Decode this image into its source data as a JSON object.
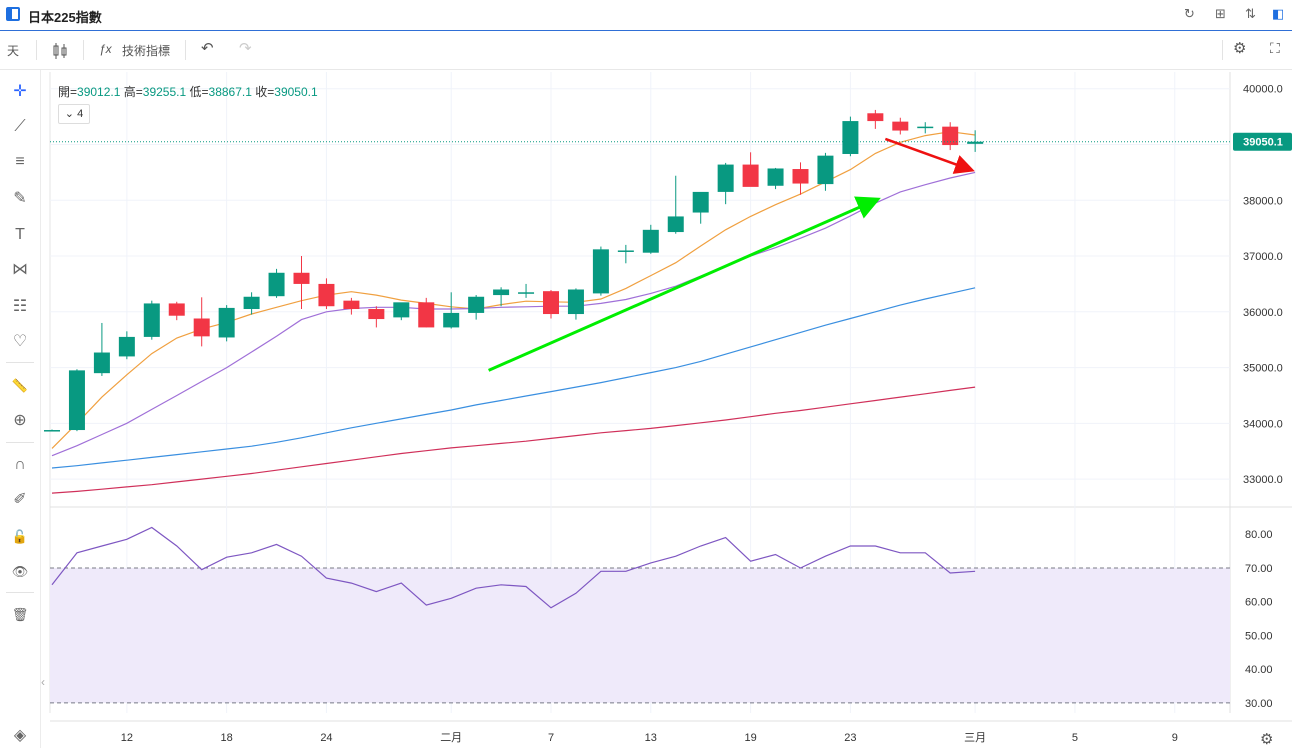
{
  "window": {
    "title": "日本225指數",
    "buttons": [
      {
        "name": "refresh-icon",
        "glyph": "↻"
      },
      {
        "name": "layout-icon",
        "glyph": "⊞"
      },
      {
        "name": "compare-icon",
        "glyph": "⇅"
      },
      {
        "name": "fullscreen-panel-icon",
        "glyph": "◧"
      }
    ]
  },
  "toolbar": {
    "interval": "天",
    "indicators_label": "技術指標",
    "fx_glyph": "ƒx",
    "undo_glyph": "↶",
    "redo_glyph": "↷",
    "settings_glyph": "⚙",
    "fullscreen_glyph": "⛶"
  },
  "leftbar": {
    "tools": [
      {
        "name": "crosshair-icon",
        "glyph": "✛"
      },
      {
        "name": "trendline-icon",
        "glyph": "⟋"
      },
      {
        "name": "horizontal-lines-icon",
        "glyph": "≡"
      },
      {
        "name": "brush-icon",
        "glyph": "✎"
      },
      {
        "name": "text-icon",
        "glyph": "T"
      },
      {
        "name": "pattern-icon",
        "glyph": "⋈"
      },
      {
        "name": "fib-icon",
        "glyph": "☷"
      },
      {
        "name": "heart-icon",
        "glyph": "♡"
      },
      {
        "name": "ruler-icon",
        "glyph": "📏"
      },
      {
        "name": "zoom-icon",
        "glyph": "⊕"
      },
      {
        "name": "magnet-icon",
        "glyph": "∩"
      },
      {
        "name": "lock-pen-icon",
        "glyph": "✐"
      },
      {
        "name": "lock-icon",
        "glyph": "🔓"
      },
      {
        "name": "eye-icon",
        "glyph": "👁"
      },
      {
        "name": "trash-icon",
        "glyph": "🗑"
      }
    ],
    "layers_glyph": "◈",
    "collapse_glyph": "‹"
  },
  "legend": {
    "open_label": "開=",
    "open": "39012.1",
    "high_label": "高=",
    "high": "39255.1",
    "low_label": "低=",
    "low": "38867.1",
    "close_label": "收=",
    "close": "39050.1",
    "indicator_badge": "4"
  },
  "colors": {
    "up": "#089981",
    "down": "#f23645",
    "ma_orange": "#f0a040",
    "ma_purple": "#a070d8",
    "ma_blue": "#3a8fe0",
    "ma_red": "#d0305a",
    "rsi": "#7e57c2",
    "rsi_band": "#efeafa",
    "arrow_up": "#00ee00",
    "arrow_down": "#ee1111",
    "last_price_bg": "#089981"
  },
  "chart_data": {
    "type": "candlestick",
    "price_axis": {
      "ylim": [
        32500,
        40300
      ],
      "ticks": [
        "40000.0",
        "39000.0",
        "38000.0",
        "37000.0",
        "36000.0",
        "35000.0",
        "34000.0",
        "33000.0"
      ],
      "tick_values": [
        40000,
        39000,
        38000,
        37000,
        36000,
        35000,
        34000,
        33000
      ]
    },
    "last_price": 39050.1,
    "last_price_label": "39050.1",
    "x_axis": {
      "ticks": [
        "12",
        "18",
        "24",
        "二月",
        "7",
        "13",
        "19",
        "23",
        "三月",
        "5",
        "9"
      ],
      "tick_index": [
        3,
        7,
        11,
        16,
        20,
        24,
        28,
        32,
        37,
        41,
        45
      ]
    },
    "candles": [
      {
        "o": 33880,
        "h": 33890,
        "l": 33870,
        "c": 33880
      },
      {
        "o": 33880,
        "h": 34970,
        "l": 33860,
        "c": 34950
      },
      {
        "o": 34900,
        "h": 35800,
        "l": 34850,
        "c": 35270
      },
      {
        "o": 35200,
        "h": 35650,
        "l": 35150,
        "c": 35550
      },
      {
        "o": 35550,
        "h": 36200,
        "l": 35500,
        "c": 36150
      },
      {
        "o": 36150,
        "h": 36180,
        "l": 35850,
        "c": 35930
      },
      {
        "o": 35880,
        "h": 36260,
        "l": 35380,
        "c": 35560
      },
      {
        "o": 35540,
        "h": 36120,
        "l": 35470,
        "c": 36070
      },
      {
        "o": 36050,
        "h": 36350,
        "l": 35950,
        "c": 36270
      },
      {
        "o": 36280,
        "h": 36770,
        "l": 36250,
        "c": 36700
      },
      {
        "o": 36700,
        "h": 37000,
        "l": 36050,
        "c": 36500
      },
      {
        "o": 36500,
        "h": 36600,
        "l": 36050,
        "c": 36100
      },
      {
        "o": 36200,
        "h": 36250,
        "l": 35950,
        "c": 36050
      },
      {
        "o": 36050,
        "h": 36100,
        "l": 35720,
        "c": 35870
      },
      {
        "o": 35900,
        "h": 36160,
        "l": 35850,
        "c": 36170
      },
      {
        "o": 36170,
        "h": 36250,
        "l": 35720,
        "c": 35720
      },
      {
        "o": 35720,
        "h": 36350,
        "l": 35700,
        "c": 35980
      },
      {
        "o": 35980,
        "h": 36300,
        "l": 35860,
        "c": 36270
      },
      {
        "o": 36300,
        "h": 36440,
        "l": 36100,
        "c": 36400
      },
      {
        "o": 36350,
        "h": 36500,
        "l": 36250,
        "c": 36350
      },
      {
        "o": 36370,
        "h": 36390,
        "l": 35880,
        "c": 35960
      },
      {
        "o": 35960,
        "h": 36420,
        "l": 35860,
        "c": 36400
      },
      {
        "o": 36330,
        "h": 37170,
        "l": 36290,
        "c": 37120
      },
      {
        "o": 37100,
        "h": 37200,
        "l": 36870,
        "c": 37100
      },
      {
        "o": 37060,
        "h": 37560,
        "l": 37040,
        "c": 37470
      },
      {
        "o": 37430,
        "h": 38440,
        "l": 37400,
        "c": 37710
      },
      {
        "o": 37780,
        "h": 38130,
        "l": 37580,
        "c": 38150
      },
      {
        "o": 38150,
        "h": 38670,
        "l": 37930,
        "c": 38640
      },
      {
        "o": 38640,
        "h": 38860,
        "l": 38250,
        "c": 38240
      },
      {
        "o": 38260,
        "h": 38580,
        "l": 38200,
        "c": 38570
      },
      {
        "o": 38560,
        "h": 38680,
        "l": 38100,
        "c": 38300
      },
      {
        "o": 38290,
        "h": 38850,
        "l": 38170,
        "c": 38800
      },
      {
        "o": 38830,
        "h": 39500,
        "l": 38790,
        "c": 39420
      },
      {
        "o": 39560,
        "h": 39620,
        "l": 39280,
        "c": 39420
      },
      {
        "o": 39410,
        "h": 39480,
        "l": 39180,
        "c": 39250
      },
      {
        "o": 39300,
        "h": 39400,
        "l": 39200,
        "c": 39320
      },
      {
        "o": 39320,
        "h": 39400,
        "l": 38900,
        "c": 38990
      },
      {
        "o": 39012.1,
        "h": 39255.1,
        "l": 38867.1,
        "c": 39050.1
      }
    ],
    "moving_averages": [
      {
        "color": "ma_orange",
        "values": [
          33550,
          34000,
          34470,
          34870,
          35250,
          35530,
          35690,
          35810,
          35960,
          36080,
          36200,
          36300,
          36360,
          36300,
          36210,
          36150,
          36090,
          36050,
          36130,
          36190,
          36180,
          36170,
          36230,
          36420,
          36650,
          36880,
          37180,
          37470,
          37710,
          37920,
          38110,
          38330,
          38550,
          38840,
          39040,
          39160,
          39230,
          39170
        ]
      },
      {
        "color": "ma_purple",
        "values": [
          33420,
          33600,
          33800,
          34000,
          34250,
          34500,
          34750,
          35000,
          35280,
          35560,
          35860,
          36000,
          36060,
          36080,
          36080,
          36050,
          36050,
          36060,
          36080,
          36090,
          36100,
          36100,
          36150,
          36220,
          36330,
          36460,
          36640,
          36820,
          37000,
          37150,
          37320,
          37500,
          37720,
          37950,
          38150,
          38280,
          38400,
          38500
        ]
      },
      {
        "color": "ma_blue",
        "values": [
          33200,
          33240,
          33290,
          33340,
          33390,
          33440,
          33490,
          33540,
          33590,
          33660,
          33740,
          33830,
          33920,
          34000,
          34080,
          34160,
          34240,
          34330,
          34410,
          34490,
          34570,
          34650,
          34730,
          34820,
          34910,
          35000,
          35110,
          35240,
          35370,
          35500,
          35630,
          35760,
          35880,
          36000,
          36120,
          36230,
          36330,
          36430
        ]
      },
      {
        "color": "ma_red",
        "values": [
          32750,
          32780,
          32820,
          32860,
          32900,
          32950,
          33000,
          33050,
          33100,
          33160,
          33220,
          33280,
          33340,
          33400,
          33460,
          33510,
          33560,
          33600,
          33640,
          33680,
          33730,
          33780,
          33830,
          33870,
          33910,
          33960,
          34010,
          34060,
          34120,
          34180,
          34230,
          34290,
          34350,
          34410,
          34470,
          34530,
          34590,
          34650
        ]
      }
    ],
    "rsi": {
      "ylim": [
        27,
        86
      ],
      "ticks": [
        "80.00",
        "70.00",
        "60.00",
        "50.00",
        "40.00",
        "30.00"
      ],
      "tick_values": [
        80,
        70,
        60,
        50,
        40,
        30
      ],
      "upper": 70,
      "lower": 30,
      "values": [
        65,
        74.5,
        76.5,
        78.5,
        82,
        76.5,
        69.5,
        73.2,
        74.5,
        77,
        73.5,
        67,
        65.5,
        63,
        65.5,
        59,
        61,
        64,
        65,
        64.5,
        58.2,
        62.5,
        69,
        69,
        71.5,
        73.5,
        76.5,
        79,
        72,
        74,
        70,
        73.5,
        76.5,
        76.5,
        74.5,
        74.5,
        68.5,
        69
      ]
    }
  }
}
